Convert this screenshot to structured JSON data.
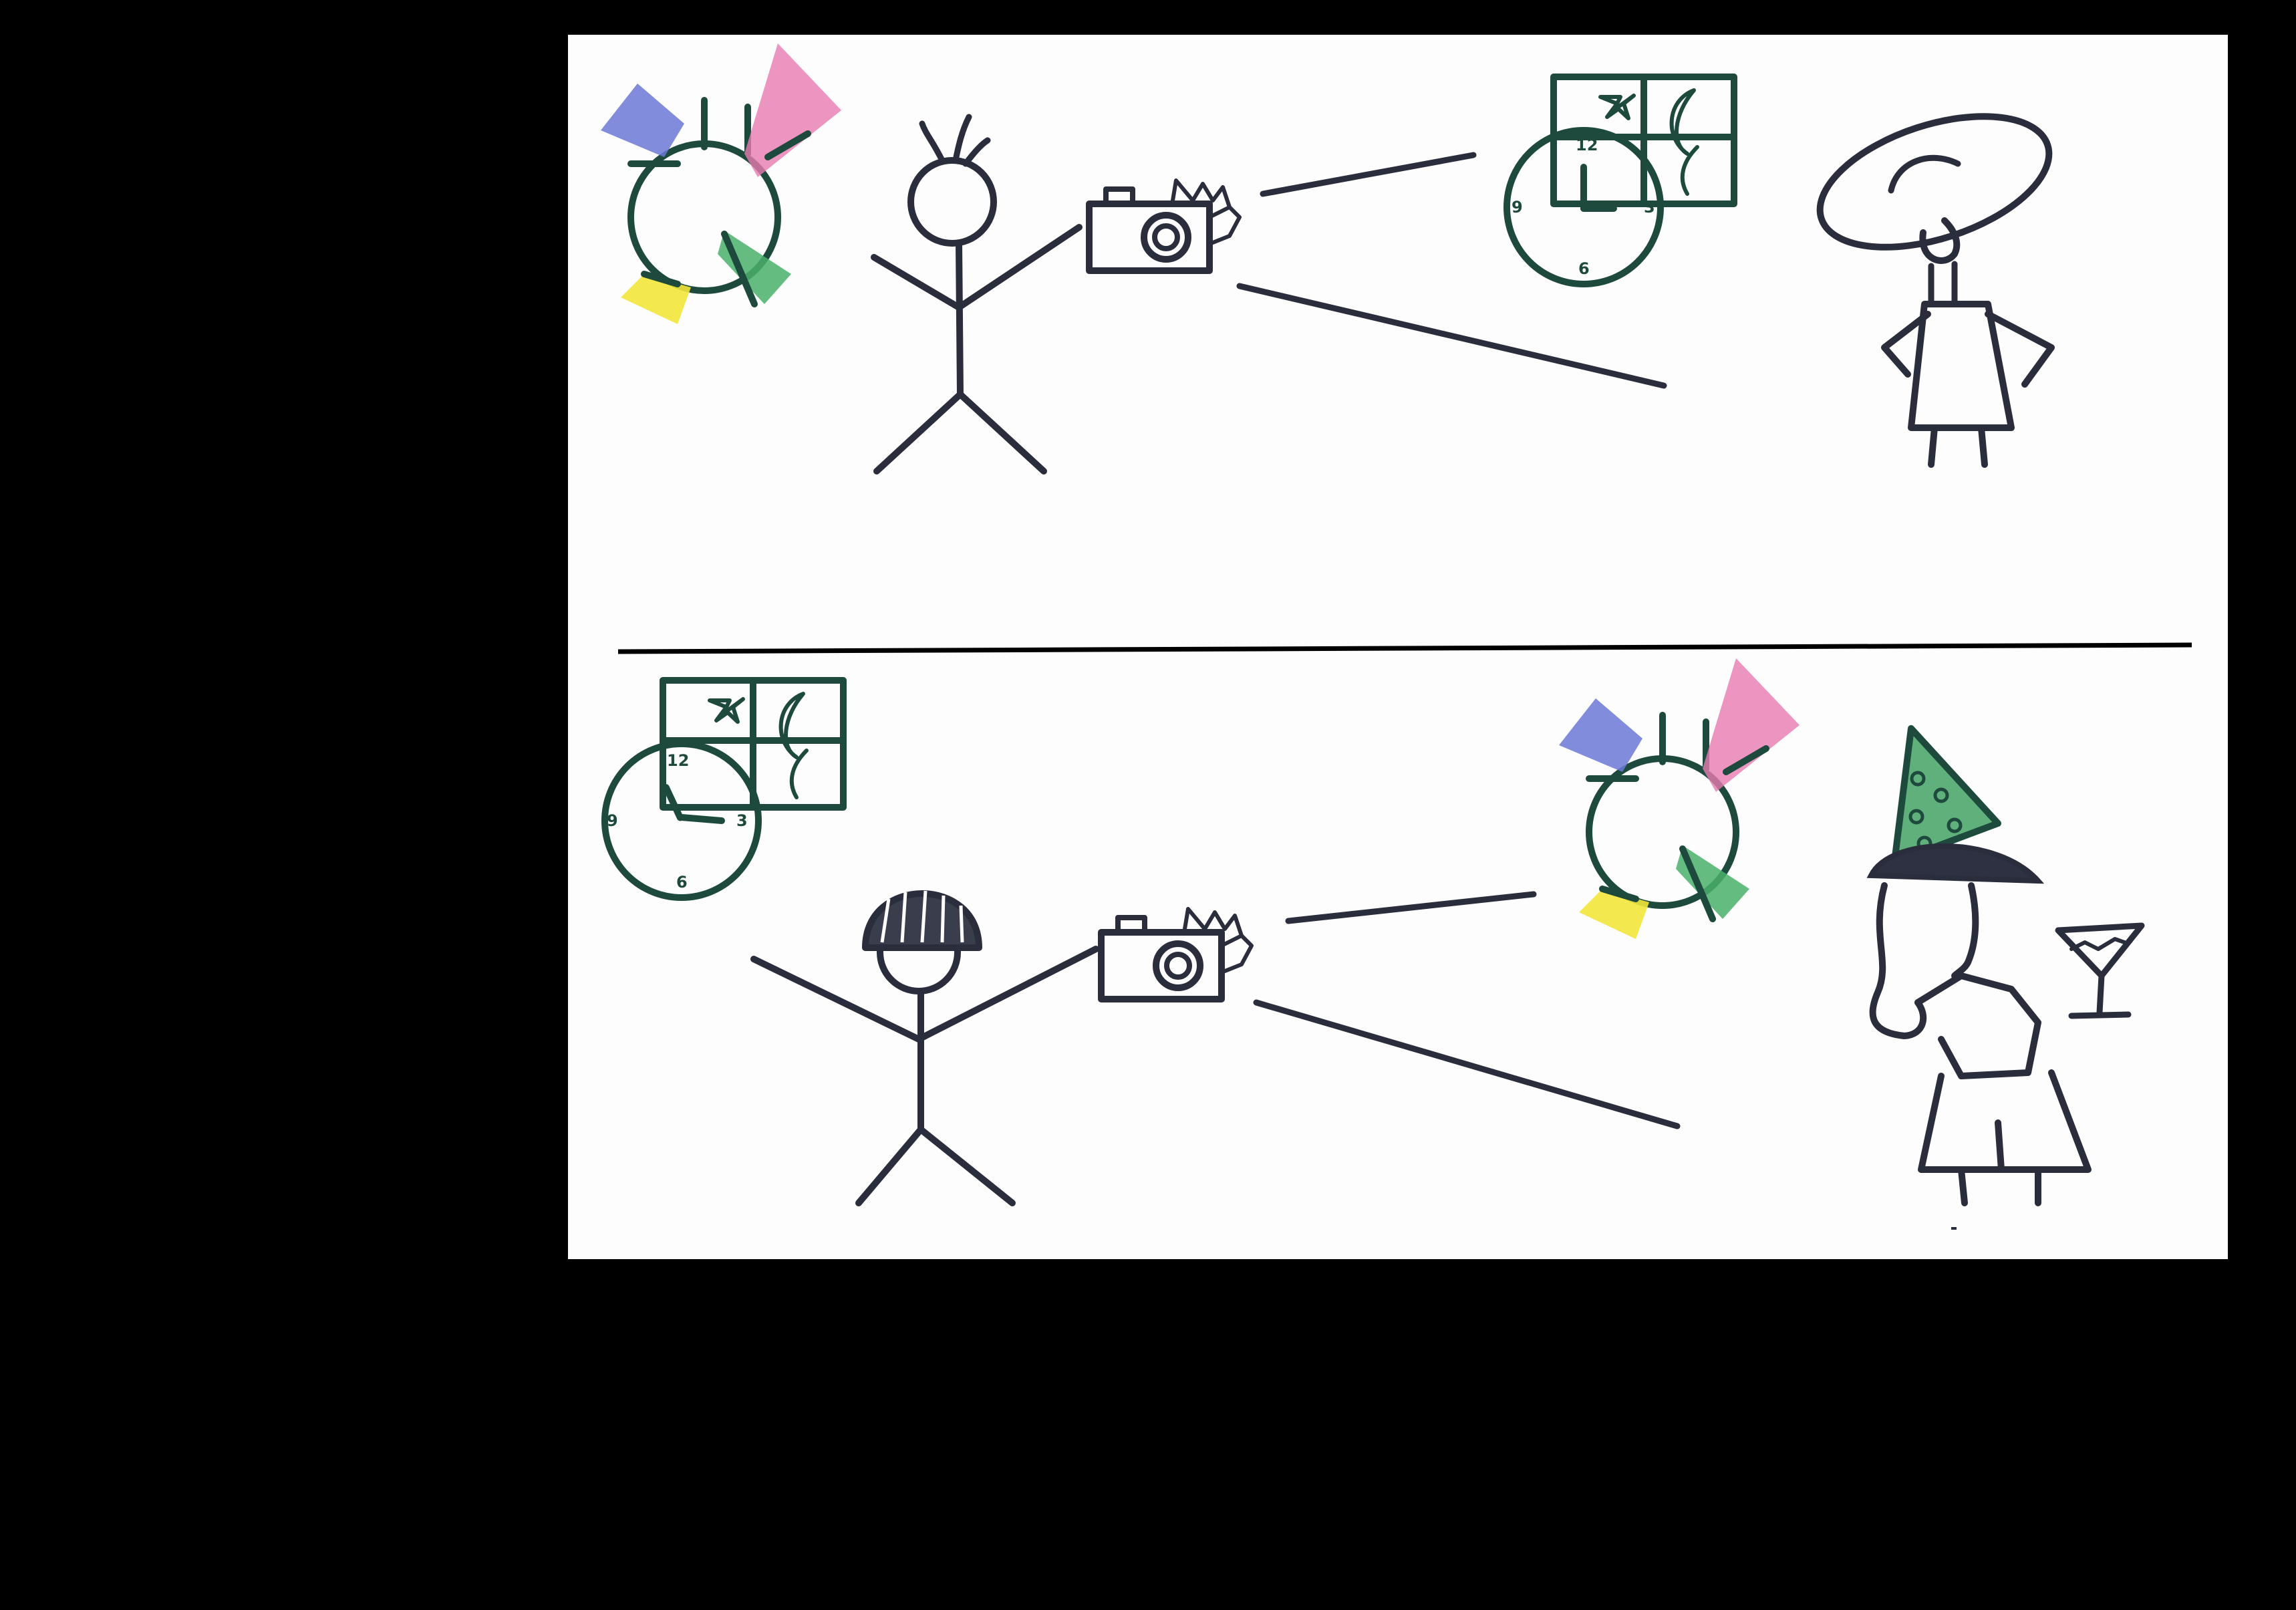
{
  "canvas": {
    "background": "#000000",
    "paper": "#fdfdfe"
  },
  "colors": {
    "ink": "#2a2d3c",
    "green_ink": "#1e4a3e",
    "light_blue": "#6b78d6",
    "light_pink": "#e77ab0",
    "light_green": "#49b06a",
    "light_yellow": "#f2e63a",
    "hat_green": "#5fb07a"
  },
  "clock": {
    "labels": [
      "12",
      "3",
      "6",
      "9"
    ]
  },
  "panels": [
    {
      "scene": "photographer with spiky hair photographs a woman in a wide sun hat; clock near 12, night window, disco lights in corner"
    },
    {
      "scene": "photographer with bowl haircut photographs a woman with party hat holding a cocktail; clock near 3, disco lights behind her"
    }
  ],
  "icons": [
    "disco-light-icon",
    "clock-icon",
    "night-window-icon",
    "camera-icon",
    "stick-figure-icon",
    "cocktail-glass-icon",
    "party-hat-icon",
    "sun-hat-icon"
  ]
}
